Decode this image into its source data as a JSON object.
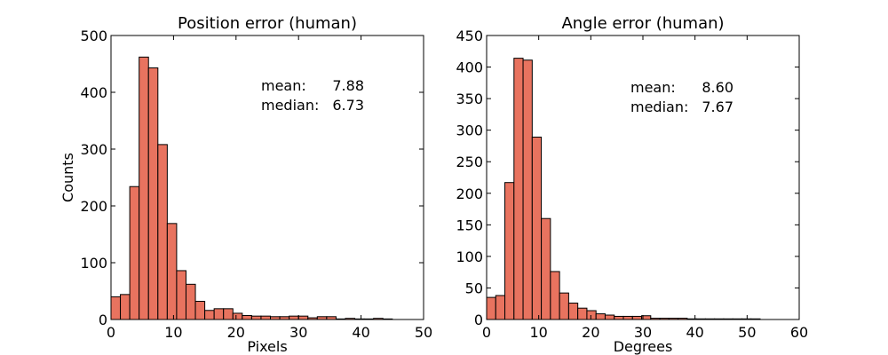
{
  "chart_data": [
    {
      "type": "bar",
      "title": "Position error (human)",
      "xlabel": "Pixels",
      "ylabel": "Counts",
      "xlim": [
        0,
        50
      ],
      "ylim": [
        0,
        500
      ],
      "xticks": [
        0,
        10,
        20,
        30,
        40,
        50
      ],
      "yticks": [
        0,
        100,
        200,
        300,
        400,
        500
      ],
      "grid": false,
      "color": "#e8735f",
      "bin_width": 1.5,
      "bins_start": 0,
      "values": [
        40,
        44,
        234,
        462,
        443,
        308,
        169,
        86,
        62,
        32,
        16,
        19,
        19,
        11,
        7,
        6,
        6,
        5,
        5,
        6,
        6,
        3,
        5,
        5,
        1,
        2,
        1,
        1,
        2,
        1
      ],
      "annotations": [
        {
          "label": "mean:",
          "value": "7.88"
        },
        {
          "label": "median:",
          "value": "6.73"
        }
      ]
    },
    {
      "type": "bar",
      "title": "Angle error (human)",
      "xlabel": "Degrees",
      "ylabel": "",
      "xlim": [
        0,
        60
      ],
      "ylim": [
        0,
        450
      ],
      "xticks": [
        0,
        10,
        20,
        30,
        40,
        50,
        60
      ],
      "yticks": [
        0,
        50,
        100,
        150,
        200,
        250,
        300,
        350,
        400,
        450
      ],
      "grid": false,
      "color": "#e8735f",
      "bin_width": 1.75,
      "bins_start": 0,
      "values": [
        35,
        38,
        217,
        414,
        411,
        289,
        160,
        76,
        42,
        26,
        18,
        14,
        9,
        7,
        5,
        5,
        5,
        6,
        2,
        2,
        2,
        2,
        1,
        1,
        1,
        1,
        1,
        1,
        1,
        1
      ],
      "annotations": [
        {
          "label": "mean:",
          "value": "8.60"
        },
        {
          "label": "median:",
          "value": "7.67"
        }
      ]
    }
  ]
}
